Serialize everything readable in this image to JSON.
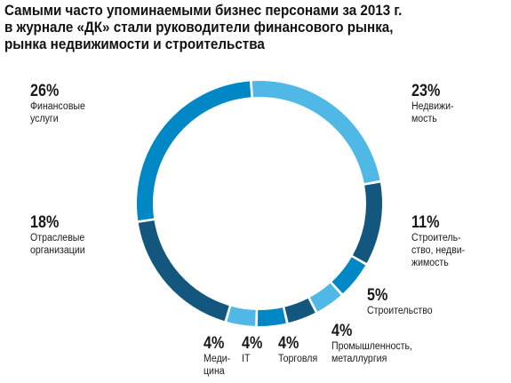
{
  "title_lines": [
    "Самыми часто упоминаемыми бизнес персонами за 2013 г.",
    "в журнале «ДК» стали руководители финансового рынка,",
    "рынка недвижимости и строительства"
  ],
  "chart_data": {
    "type": "pie",
    "donut": true,
    "title": "Самыми часто упоминаемыми бизнес персонами за 2013 г. в журнале «ДК» стали руководители финансового рынка, рынка недвижимости и строительства",
    "slices": [
      {
        "label_lines": [
          "Недвижи-",
          "мость"
        ],
        "value": 23,
        "value_label": "23%",
        "color": "#4fb8e6"
      },
      {
        "label_lines": [
          "Строитель-",
          "ство, недви-",
          "жимость"
        ],
        "value": 11,
        "value_label": "11%",
        "color": "#13577f"
      },
      {
        "label_lines": [
          "Строительство"
        ],
        "value": 5,
        "value_label": "5%",
        "color": "#0088c6"
      },
      {
        "label_lines": [
          "Промышленность,",
          "металлургия"
        ],
        "value": 4,
        "value_label": "4%",
        "color": "#4fb8e6"
      },
      {
        "label_lines": [
          "Торговля"
        ],
        "value": 4,
        "value_label": "4%",
        "color": "#13577f"
      },
      {
        "label_lines": [
          "IT"
        ],
        "value": 4,
        "value_label": "4%",
        "color": "#0088c6"
      },
      {
        "label_lines": [
          "Меди-",
          "цина"
        ],
        "value": 4,
        "value_label": "4%",
        "color": "#4fb8e6"
      },
      {
        "label_lines": [
          "Отраслевые",
          "организации"
        ],
        "value": 18,
        "value_label": "18%",
        "color": "#13577f"
      },
      {
        "label_lines": [
          "Финансовые",
          "услуги"
        ],
        "value": 26,
        "value_label": "26%",
        "color": "#0088c6"
      }
    ]
  }
}
